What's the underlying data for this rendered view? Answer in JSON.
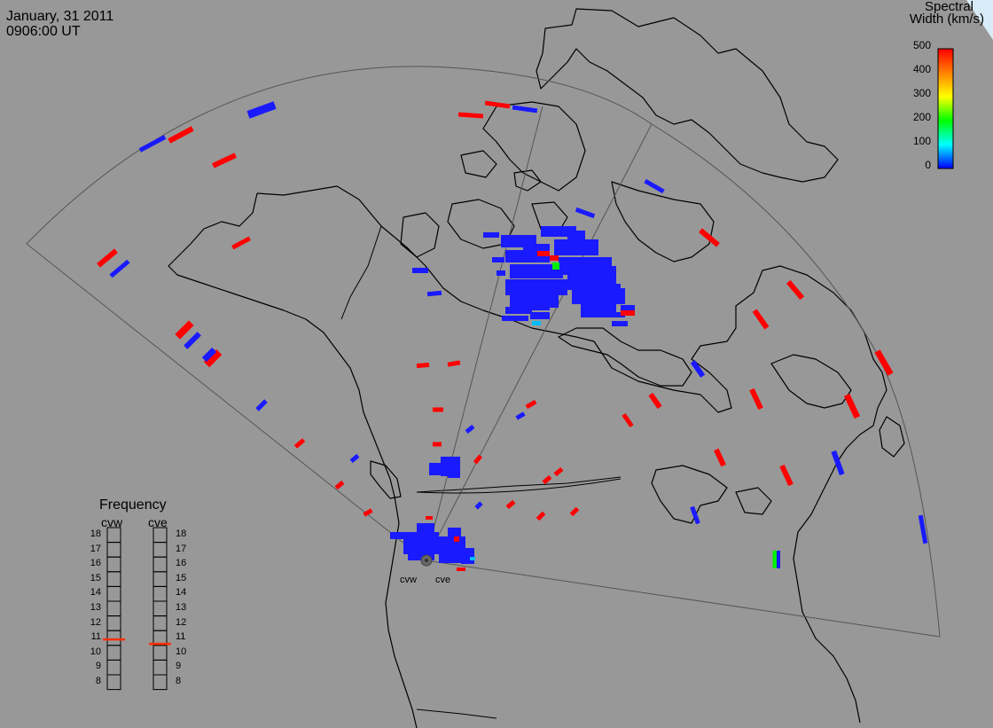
{
  "header": {
    "date": "January, 31 2011",
    "time": "0906:00 UT"
  },
  "colorbar": {
    "title_line1": "Spectral",
    "title_line2": "Width (km/s)",
    "ticks": [
      "500",
      "400",
      "300",
      "200",
      "100",
      "0"
    ],
    "colors": [
      "#ff0000",
      "#ff8000",
      "#ffff00",
      "#00ff00",
      "#00ffff",
      "#0000ff"
    ]
  },
  "frequency_panel": {
    "title": "Frequency",
    "radars": [
      "cvw",
      "cve"
    ],
    "ticks": [
      "18",
      "17",
      "16",
      "15",
      "14",
      "13",
      "12",
      "11",
      "10",
      "9",
      "8"
    ],
    "cvw_mhz": 10.9,
    "cve_mhz": 10.6
  },
  "sites": {
    "west": "cvw",
    "east": "cve"
  },
  "colors": {
    "background": "#989898",
    "coastline": "#000000",
    "fov": "#555555",
    "indicator": "#ff3000"
  }
}
